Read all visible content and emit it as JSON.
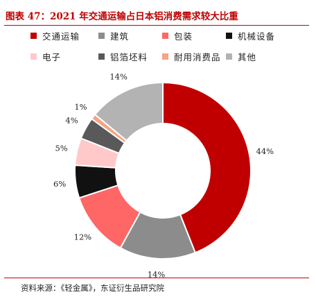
{
  "header": {
    "title": "图表 47：2021 年交通运输占日本铝消费需求较大比重"
  },
  "footer": {
    "source": "资料来源：《轻金属》，东证衍生品研究院"
  },
  "chart_data": {
    "type": "pie",
    "donut": true,
    "title": "",
    "categories": [
      "交通运输",
      "建筑",
      "包装",
      "机械设备",
      "电子",
      "铝箔坯料",
      "耐用消费品",
      "其他"
    ],
    "values": [
      44,
      14,
      12,
      6,
      5,
      4,
      1,
      14
    ],
    "labels": [
      "44%",
      "14%",
      "12%",
      "6%",
      "5%",
      "4%",
      "1%",
      "14%"
    ],
    "colors": [
      "#c00000",
      "#8c8c8c",
      "#ff6666",
      "#111111",
      "#ffc9c9",
      "#595959",
      "#f4a582",
      "#b3b3b3"
    ],
    "legend_position": "top"
  }
}
